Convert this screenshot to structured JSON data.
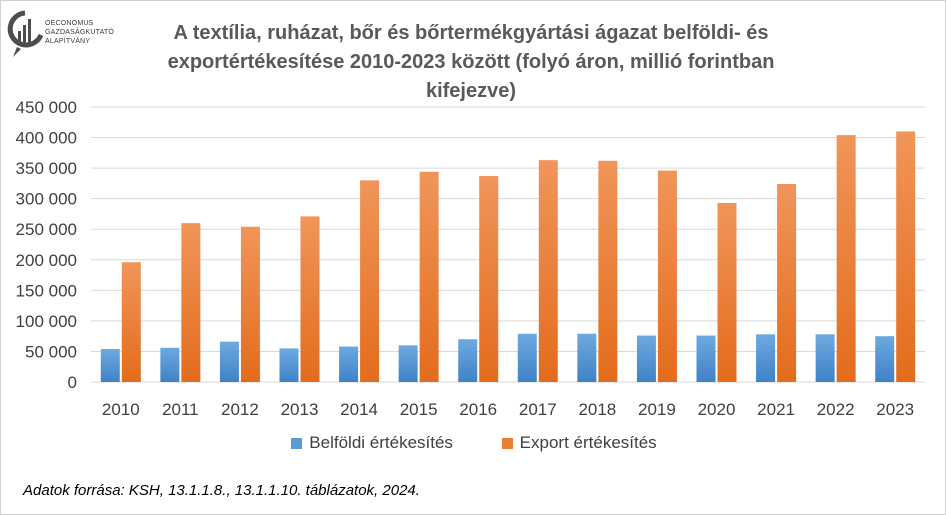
{
  "logo": {
    "lines": [
      "OECONOMUS",
      "GAZDASÁGKUTATÓ",
      "ALAPÍTVÁNY"
    ]
  },
  "chart_data": {
    "type": "bar",
    "title_lines": [
      "A textília, ruházat, bőr és bőrtermékgyártási ágazat belföldi- és",
      "exportértékesítése 2010-2023 között (folyó áron, millió forintban",
      "kifejezve)"
    ],
    "categories": [
      "2010",
      "2011",
      "2012",
      "2013",
      "2014",
      "2015",
      "2016",
      "2017",
      "2018",
      "2019",
      "2020",
      "2021",
      "2022",
      "2023"
    ],
    "series": [
      {
        "name": "Belföldi értékesítés",
        "color": "#5b9bd5",
        "values": [
          54000,
          56000,
          66000,
          55000,
          58000,
          60000,
          70000,
          79000,
          79000,
          76000,
          76000,
          78000,
          78000,
          75000
        ]
      },
      {
        "name": "Export értékesítés",
        "color": "#ed7d31",
        "values": [
          196000,
          260000,
          254000,
          271000,
          330000,
          344000,
          337000,
          363000,
          362000,
          346000,
          293000,
          324000,
          404000,
          410000
        ]
      }
    ],
    "ylim": [
      0,
      450000
    ],
    "yticks": [
      "0",
      "50 000",
      "100 000",
      "150 000",
      "200 000",
      "250 000",
      "300 000",
      "350 000",
      "400 000",
      "450 000"
    ],
    "grid": true,
    "legend_position": "bottom"
  },
  "source": "Adatok forrása: KSH, 13.1.1.8., 13.1.1.10. táblázatok, 2024."
}
